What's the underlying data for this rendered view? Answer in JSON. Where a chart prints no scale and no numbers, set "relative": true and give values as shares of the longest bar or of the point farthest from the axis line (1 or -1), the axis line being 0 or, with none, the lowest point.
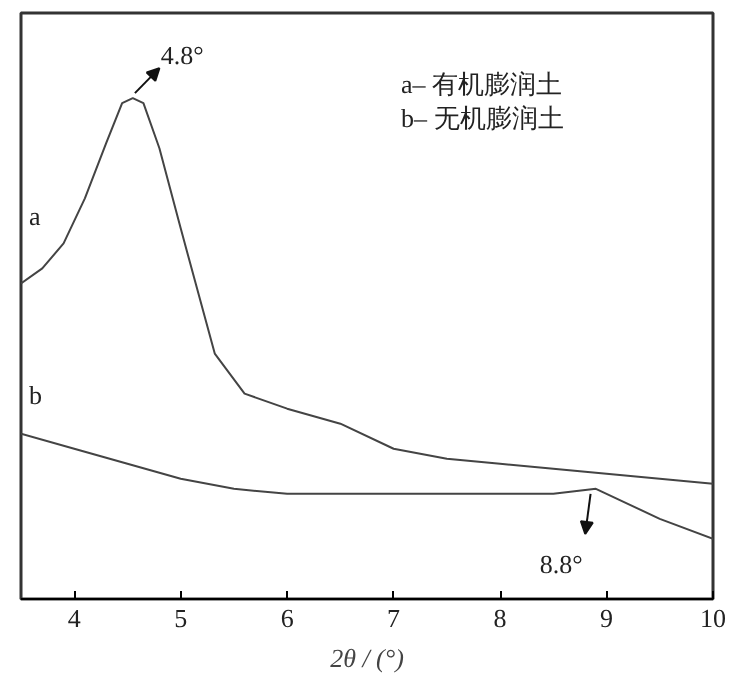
{
  "chart_data": {
    "type": "line",
    "relative": true,
    "xlabel": "2θ / (°)",
    "xlim": [
      3.5,
      10
    ],
    "xticks": [
      4,
      5,
      6,
      7,
      8,
      9,
      10
    ],
    "grid": false,
    "marker": "none",
    "line_style": "solid",
    "series": [
      {
        "name": "a",
        "color": "#444444",
        "x": [
          3.5,
          3.7,
          3.9,
          4.1,
          4.3,
          4.45,
          4.55,
          4.65,
          4.8,
          5.0,
          5.32,
          5.6,
          6.0,
          6.5,
          7.0,
          7.5,
          8.0,
          8.5,
          9.0,
          9.5,
          10.0
        ],
        "values": [
          0.63,
          0.66,
          0.71,
          0.8,
          0.91,
          0.99,
          1.0,
          0.99,
          0.9,
          0.74,
          0.49,
          0.41,
          0.38,
          0.35,
          0.3,
          0.28,
          0.27,
          0.26,
          0.25,
          0.24,
          0.23
        ]
      },
      {
        "name": "b",
        "color": "#444444",
        "x": [
          3.5,
          4.0,
          4.5,
          5.0,
          5.5,
          6.0,
          7.0,
          8.0,
          8.5,
          8.9,
          9.2,
          9.5,
          10.0
        ],
        "values": [
          0.33,
          0.3,
          0.27,
          0.24,
          0.22,
          0.21,
          0.21,
          0.21,
          0.21,
          0.22,
          0.19,
          0.16,
          0.12
        ]
      }
    ],
    "annotations": [
      {
        "text": "4.8°",
        "x": 4.55,
        "y": 1.0
      },
      {
        "text": "8.8°",
        "x": 8.85,
        "y": 0.22
      },
      "a– 有机膨润土",
      "b– 无机膨润土"
    ]
  }
}
